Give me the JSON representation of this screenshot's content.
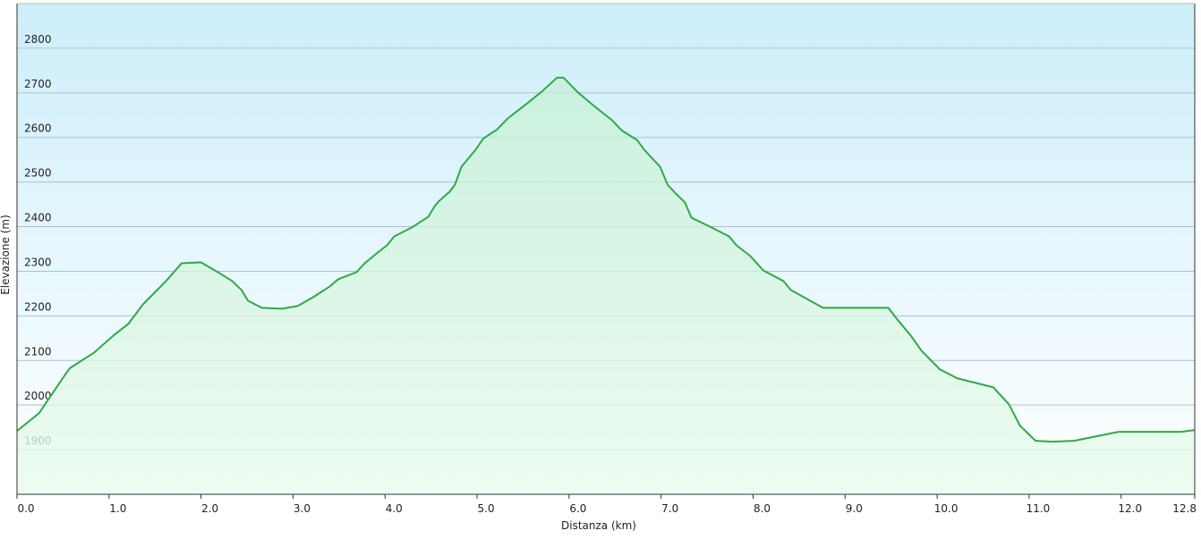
{
  "chart_data": {
    "type": "line",
    "xlabel": "Distanza   (km)",
    "ylabel": "Elevazione (m)",
    "x": [
      0,
      0.24,
      0.45,
      0.57,
      0.84,
      1.06,
      1.21,
      1.37,
      1.62,
      1.79,
      2.0,
      2.15,
      2.34,
      2.44,
      2.51,
      2.66,
      2.88,
      3.05,
      3.22,
      3.4,
      3.49,
      3.69,
      3.78,
      3.92,
      4.02,
      4.1,
      4.29,
      4.47,
      4.54,
      4.59,
      4.7,
      4.76,
      4.83,
      4.99,
      5.07,
      5.22,
      5.33,
      5.53,
      5.7,
      5.87,
      5.94,
      6.09,
      6.25,
      6.47,
      6.57,
      6.74,
      6.81,
      6.99,
      7.07,
      7.16,
      7.26,
      7.33,
      7.55,
      7.74,
      7.82,
      7.97,
      8.11,
      8.33,
      8.41,
      8.76,
      9.47,
      9.56,
      9.72,
      9.83,
      10.03,
      10.22,
      10.61,
      10.78,
      10.9,
      11.0,
      11.07,
      11.25,
      11.49,
      11.73,
      11.97,
      12.65,
      12.8
    ],
    "series": [
      {
        "color": "#2eaa48",
        "values": [
          1942,
          1982,
          2046,
          2082,
          2118,
          2158,
          2182,
          2226,
          2278,
          2318,
          2320,
          2302,
          2278,
          2258,
          2234,
          2218,
          2216,
          2222,
          2242,
          2266,
          2282,
          2298,
          2318,
          2342,
          2358,
          2378,
          2398,
          2422,
          2446,
          2458,
          2478,
          2494,
          2534,
          2574,
          2598,
          2618,
          2642,
          2674,
          2702,
          2734,
          2734,
          2702,
          2674,
          2638,
          2616,
          2594,
          2574,
          2534,
          2494,
          2474,
          2454,
          2420,
          2398,
          2378,
          2358,
          2334,
          2302,
          2278,
          2258,
          2218,
          2218,
          2194,
          2154,
          2122,
          2080,
          2060,
          2040,
          2002,
          1954,
          1934,
          1920,
          1918,
          1920,
          1930,
          1940,
          1940,
          1944
        ]
      }
    ],
    "xlim": [
      0,
      12.8
    ],
    "xticks": [
      {
        "value": 0,
        "label": "0.0"
      },
      {
        "value": 1,
        "label": "1.0"
      },
      {
        "value": 2,
        "label": "2.0"
      },
      {
        "value": 3,
        "label": "3.0"
      },
      {
        "value": 4,
        "label": "4.0"
      },
      {
        "value": 5,
        "label": "5.0"
      },
      {
        "value": 6,
        "label": "6.0"
      },
      {
        "value": 7,
        "label": "7.0"
      },
      {
        "value": 8,
        "label": "8.0"
      },
      {
        "value": 9,
        "label": "9.0"
      },
      {
        "value": 10,
        "label": "10.0"
      },
      {
        "value": 11,
        "label": "11.0"
      },
      {
        "value": 12,
        "label": "12.0"
      },
      12.8
    ],
    "ylim": [
      1800,
      2900
    ],
    "yticks": [
      1900,
      2000,
      2100,
      2200,
      2300,
      2400,
      2500,
      2600,
      2700,
      2800
    ],
    "grid": true
  }
}
